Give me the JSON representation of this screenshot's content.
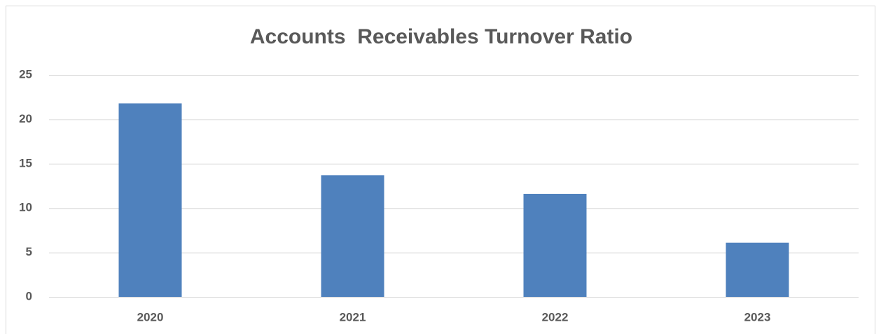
{
  "chart_data": {
    "type": "bar",
    "title": "Accounts  Receivables Turnover Ratio",
    "categories": [
      "2020",
      "2021",
      "2022",
      "2023"
    ],
    "values": [
      21.8,
      13.7,
      11.6,
      6.1
    ],
    "color": "#4f81bd",
    "ylim": [
      0,
      25
    ],
    "yticks": [
      0,
      5,
      10,
      15,
      20,
      25
    ],
    "grid": true
  }
}
